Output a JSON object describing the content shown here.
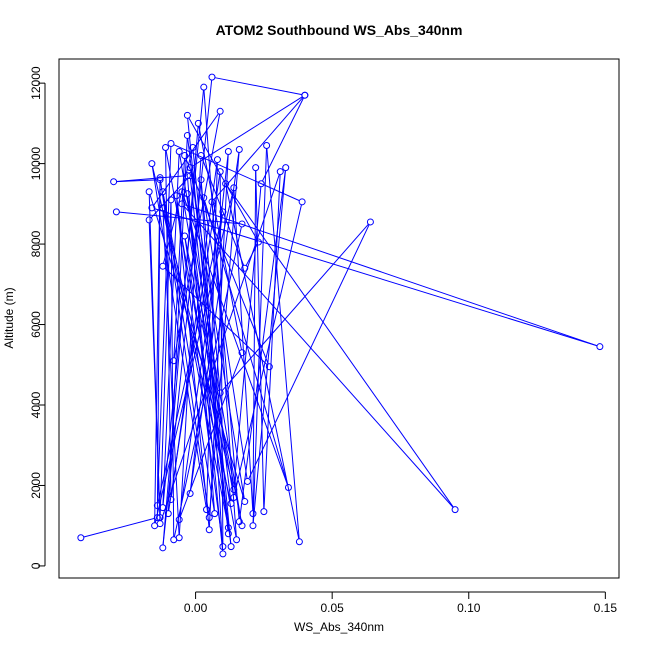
{
  "chart_data": {
    "type": "line",
    "title": "ATOM2 Southbound WS_Abs_340nm",
    "xlabel": "WS_Abs_340nm",
    "ylabel": "Altitude (m)",
    "xlim": [
      -0.05,
      0.155
    ],
    "ylim": [
      -300,
      12600
    ],
    "x_ticks": [
      0.0,
      0.05,
      0.1,
      0.15
    ],
    "x_tick_labels": [
      "0.00",
      "0.05",
      "0.10",
      "0.15"
    ],
    "y_ticks": [
      0,
      2000,
      4000,
      6000,
      8000,
      10000,
      12000
    ],
    "y_tick_labels": [
      "0",
      "2000",
      "4000",
      "6000",
      "8000",
      "10000",
      "12000"
    ],
    "grid": false,
    "legend": "none",
    "series": [
      {
        "color": "#0000ff",
        "marker": "open-circle",
        "points": [
          [
            -0.042,
            700
          ],
          [
            -0.014,
            1200
          ],
          [
            -0.013,
            9600
          ],
          [
            -0.03,
            9550
          ],
          [
            -0.003,
            9700
          ],
          [
            0.007,
            1300
          ],
          [
            -0.012,
            9300
          ],
          [
            0.012,
            950
          ],
          [
            -0.004,
            8200
          ],
          [
            0.017,
            1000
          ],
          [
            -0.006,
            10300
          ],
          [
            -0.012,
            1450
          ],
          [
            0.003,
            11900
          ],
          [
            0.015,
            650
          ],
          [
            -0.011,
            10400
          ],
          [
            -0.009,
            1650
          ],
          [
            0.008,
            10100
          ],
          [
            0.004,
            1400
          ],
          [
            -0.016,
            10000
          ],
          [
            0.013,
            1550
          ],
          [
            -0.003,
            10700
          ],
          [
            -0.01,
            1300
          ],
          [
            0.009,
            9800
          ],
          [
            0.01,
            480
          ],
          [
            -0.007,
            9200
          ],
          [
            0.005,
            900
          ],
          [
            0.012,
            10300
          ],
          [
            -0.002,
            1800
          ],
          [
            0.016,
            10350
          ],
          [
            0.005,
            1200
          ],
          [
            -0.013,
            9650
          ],
          [
            -0.015,
            1000
          ],
          [
            0.014,
            9400
          ],
          [
            0.021,
            1300
          ],
          [
            0.022,
            9900
          ],
          [
            0.025,
            1350
          ],
          [
            0.031,
            9800
          ],
          [
            -0.013,
            1050
          ],
          [
            -0.017,
            9300
          ],
          [
            0.018,
            1600
          ],
          [
            -0.002,
            9900
          ],
          [
            0.04,
            11700
          ],
          [
            0.006,
            9050
          ],
          [
            0.016,
            1100
          ],
          [
            0.033,
            9900
          ],
          [
            0.021,
            1000
          ],
          [
            0.026,
            10450
          ],
          [
            0.038,
            600
          ],
          [
            0.011,
            9500
          ],
          [
            0.095,
            1400
          ],
          [
            -0.005,
            9000
          ],
          [
            0.148,
            5450
          ],
          [
            -0.016,
            8900
          ],
          [
            0.009,
            11300
          ],
          [
            -0.008,
            5100
          ],
          [
            -0.004,
            10200
          ],
          [
            0.027,
            4950
          ],
          [
            -0.012,
            7450
          ],
          [
            -0.001,
            10400
          ],
          [
            0.013,
            480
          ],
          [
            -0.003,
            9250
          ],
          [
            0.01,
            300
          ],
          [
            0.002,
            9600
          ],
          [
            0.009,
            4300
          ],
          [
            0.064,
            8550
          ],
          [
            0.019,
            2100
          ],
          [
            0.003,
            9150
          ],
          [
            0.034,
            1950
          ],
          [
            -0.005,
            9300
          ],
          [
            0.014,
            1700
          ],
          [
            0.039,
            9050
          ],
          [
            -0.009,
            10500
          ],
          [
            -0.014,
            1500
          ],
          [
            0.01,
            8800
          ],
          [
            -0.006,
            1150
          ],
          [
            0.017,
            5300
          ],
          [
            0.001,
            11000
          ],
          [
            -0.012,
            450
          ],
          [
            0.006,
            12150
          ],
          [
            0.04,
            11700
          ],
          [
            0.024,
            9500
          ],
          [
            0.014,
            1900
          ],
          [
            -0.012,
            8900
          ],
          [
            -0.006,
            700
          ],
          [
            0.002,
            10200
          ],
          [
            0.018,
            7400
          ],
          [
            0.023,
            8050
          ],
          [
            -0.003,
            11200
          ],
          [
            0.012,
            800
          ],
          [
            -0.002,
            9700
          ],
          [
            -0.017,
            8600
          ],
          [
            -0.013,
            1200
          ],
          [
            -0.009,
            9100
          ],
          [
            -0.008,
            650
          ],
          [
            0.017,
            8500
          ],
          [
            -0.029,
            8800
          ]
        ]
      }
    ]
  }
}
